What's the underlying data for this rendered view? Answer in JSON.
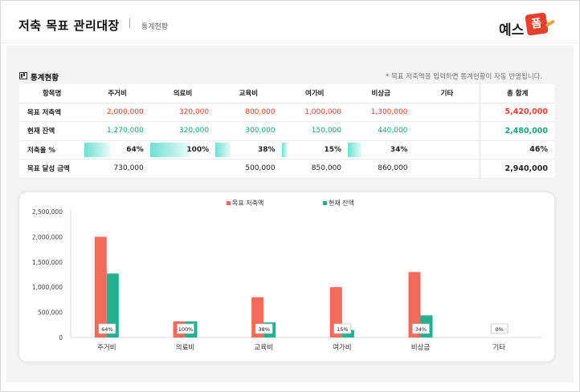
{
  "header": {
    "title": "저축 목표 관리대장",
    "subtitle": "통계현황",
    "logo_text": "예스",
    "logo_box": "폼"
  },
  "section": {
    "title": "통계현황",
    "note": "* 목표 저축액을 입력하면 통계현황이 자동 반영됩니다."
  },
  "table": {
    "headers": [
      "항목명",
      "주거비",
      "의료비",
      "교육비",
      "여가비",
      "비상금",
      "기타",
      "총 합계"
    ],
    "rows": [
      {
        "label": "목표 저축액",
        "values": [
          "2,000,000",
          "320,000",
          "800,000",
          "1,000,000",
          "1,300,000",
          ""
        ],
        "total": "5,420,000"
      },
      {
        "label": "현재 잔액",
        "values": [
          "1,270,000",
          "320,000",
          "300,000",
          "150,000",
          "440,000",
          ""
        ],
        "total": "2,480,000"
      },
      {
        "label": "저축율 %",
        "values": [
          "64%",
          "100%",
          "38%",
          "15%",
          "34%",
          ""
        ],
        "fills": [
          0.64,
          1.0,
          0.38,
          0.15,
          0.34,
          0
        ],
        "total": "46%"
      },
      {
        "label": "목표 달성 금액",
        "values": [
          "730,000",
          "",
          "500,000",
          "850,000",
          "860,000",
          ""
        ],
        "total": "2,940,000"
      }
    ]
  },
  "colors": {
    "target": "#f56b5b",
    "current": "#23b08f",
    "accent_red": "#e8402f",
    "accent_green": "#1aa37a"
  },
  "chart_data": {
    "type": "bar",
    "categories": [
      "주거비",
      "의료비",
      "교육비",
      "여가비",
      "비상금",
      "기타"
    ],
    "series": [
      {
        "name": "목표 저축액",
        "values": [
          2000000,
          320000,
          800000,
          1000000,
          1300000,
          0
        ]
      },
      {
        "name": "현재 잔액",
        "values": [
          1270000,
          320000,
          300000,
          150000,
          440000,
          0
        ]
      }
    ],
    "data_labels": [
      "64%",
      "100%",
      "38%",
      "15%",
      "34%",
      "0%"
    ],
    "y_ticks": [
      "0",
      "500,000",
      "1,000,000",
      "1,500,000",
      "2,000,000",
      "2,500,000"
    ],
    "ylim": [
      0,
      2500000
    ],
    "legend_position": "top-center",
    "grid": false
  }
}
